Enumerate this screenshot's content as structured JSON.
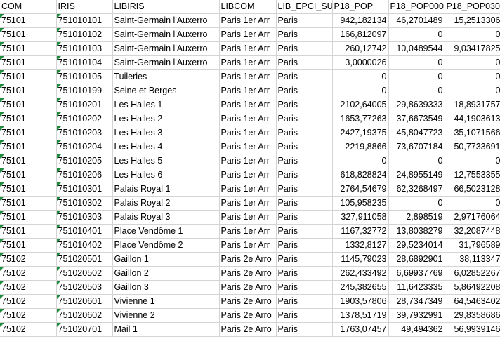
{
  "sheet": {
    "headers": [
      "COM",
      "IRIS",
      "LIBIRIS",
      "LIBCOM",
      "LIB_EPCI_SU",
      "P18_POP",
      "P18_POP000",
      "P18_POP030"
    ],
    "rows": [
      [
        "75101",
        "751010101",
        "Saint-Germain l'Auxerro",
        "Paris 1er Arr",
        "Paris",
        "942,182134",
        "46,2701489",
        "15,2513306"
      ],
      [
        "75101",
        "751010102",
        "Saint-Germain l'Auxerro",
        "Paris 1er Arr",
        "Paris",
        "166,812097",
        "0",
        "0"
      ],
      [
        "75101",
        "751010103",
        "Saint-Germain l'Auxerro",
        "Paris 1er Arr",
        "Paris",
        "260,12742",
        "10,0489544",
        "9,03417825"
      ],
      [
        "75101",
        "751010104",
        "Saint-Germain l'Auxerro",
        "Paris 1er Arr",
        "Paris",
        "3,0000026",
        "0",
        "0"
      ],
      [
        "75101",
        "751010105",
        "Tuileries",
        "Paris 1er Arr",
        "Paris",
        "0",
        "0",
        "0"
      ],
      [
        "75101",
        "751010199",
        "Seine et Berges",
        "Paris 1er Arr",
        "Paris",
        "0",
        "0",
        "0"
      ],
      [
        "75101",
        "751010201",
        "Les Halles 1",
        "Paris 1er Arr",
        "Paris",
        "2102,64005",
        "29,8639333",
        "18,8931757"
      ],
      [
        "75101",
        "751010202",
        "Les Halles 2",
        "Paris 1er Arr",
        "Paris",
        "1653,77263",
        "37,6673549",
        "44,1903613"
      ],
      [
        "75101",
        "751010203",
        "Les Halles 3",
        "Paris 1er Arr",
        "Paris",
        "2427,19375",
        "45,8047723",
        "35,1071566"
      ],
      [
        "75101",
        "751010204",
        "Les Halles 4",
        "Paris 1er Arr",
        "Paris",
        "2219,8866",
        "73,6707184",
        "50,7733691"
      ],
      [
        "75101",
        "751010205",
        "Les Halles 5",
        "Paris 1er Arr",
        "Paris",
        "0",
        "0",
        "0"
      ],
      [
        "75101",
        "751010206",
        "Les Halles 6",
        "Paris 1er Arr",
        "Paris",
        "618,828824",
        "24,8955149",
        "12,7553355"
      ],
      [
        "75101",
        "751010301",
        "Palais Royal 1",
        "Paris 1er Arr",
        "Paris",
        "2764,54679",
        "62,3268497",
        "66,5023128"
      ],
      [
        "75101",
        "751010302",
        "Palais Royal 2",
        "Paris 1er Arr",
        "Paris",
        "105,958235",
        "0",
        "0"
      ],
      [
        "75101",
        "751010303",
        "Palais Royal 3",
        "Paris 1er Arr",
        "Paris",
        "327,911058",
        "2,898519",
        "2,97176064"
      ],
      [
        "75101",
        "751010401",
        "Place Vendôme 1",
        "Paris 1er Arr",
        "Paris",
        "1167,32772",
        "13,8038279",
        "32,2087448"
      ],
      [
        "75101",
        "751010402",
        "Place Vendôme 2",
        "Paris 1er Arr",
        "Paris",
        "1332,8127",
        "29,5234014",
        "31,796589"
      ],
      [
        "75102",
        "751020501",
        "Gaillon 1",
        "Paris 2e Arro",
        "Paris",
        "1145,79023",
        "28,6892901",
        "38,113347"
      ],
      [
        "75102",
        "751020502",
        "Gaillon 2",
        "Paris 2e Arro",
        "Paris",
        "262,433492",
        "6,69937769",
        "6,02852267"
      ],
      [
        "75102",
        "751020503",
        "Gaillon 3",
        "Paris 2e Arro",
        "Paris",
        "245,382655",
        "11,6423335",
        "5,86492208"
      ],
      [
        "75102",
        "751020601",
        "Vivienne 1",
        "Paris 2e Arro",
        "Paris",
        "1903,57806",
        "28,7347349",
        "64,5463402"
      ],
      [
        "75102",
        "751020602",
        "Vivienne 2",
        "Paris 2e Arro",
        "Paris",
        "1378,51719",
        "39,7932991",
        "29,8358686"
      ],
      [
        "75102",
        "751020701",
        "Mail 1",
        "Paris 2e Arro",
        "Paris",
        "1763,07457",
        "49,494362",
        "56,9939146"
      ]
    ]
  }
}
